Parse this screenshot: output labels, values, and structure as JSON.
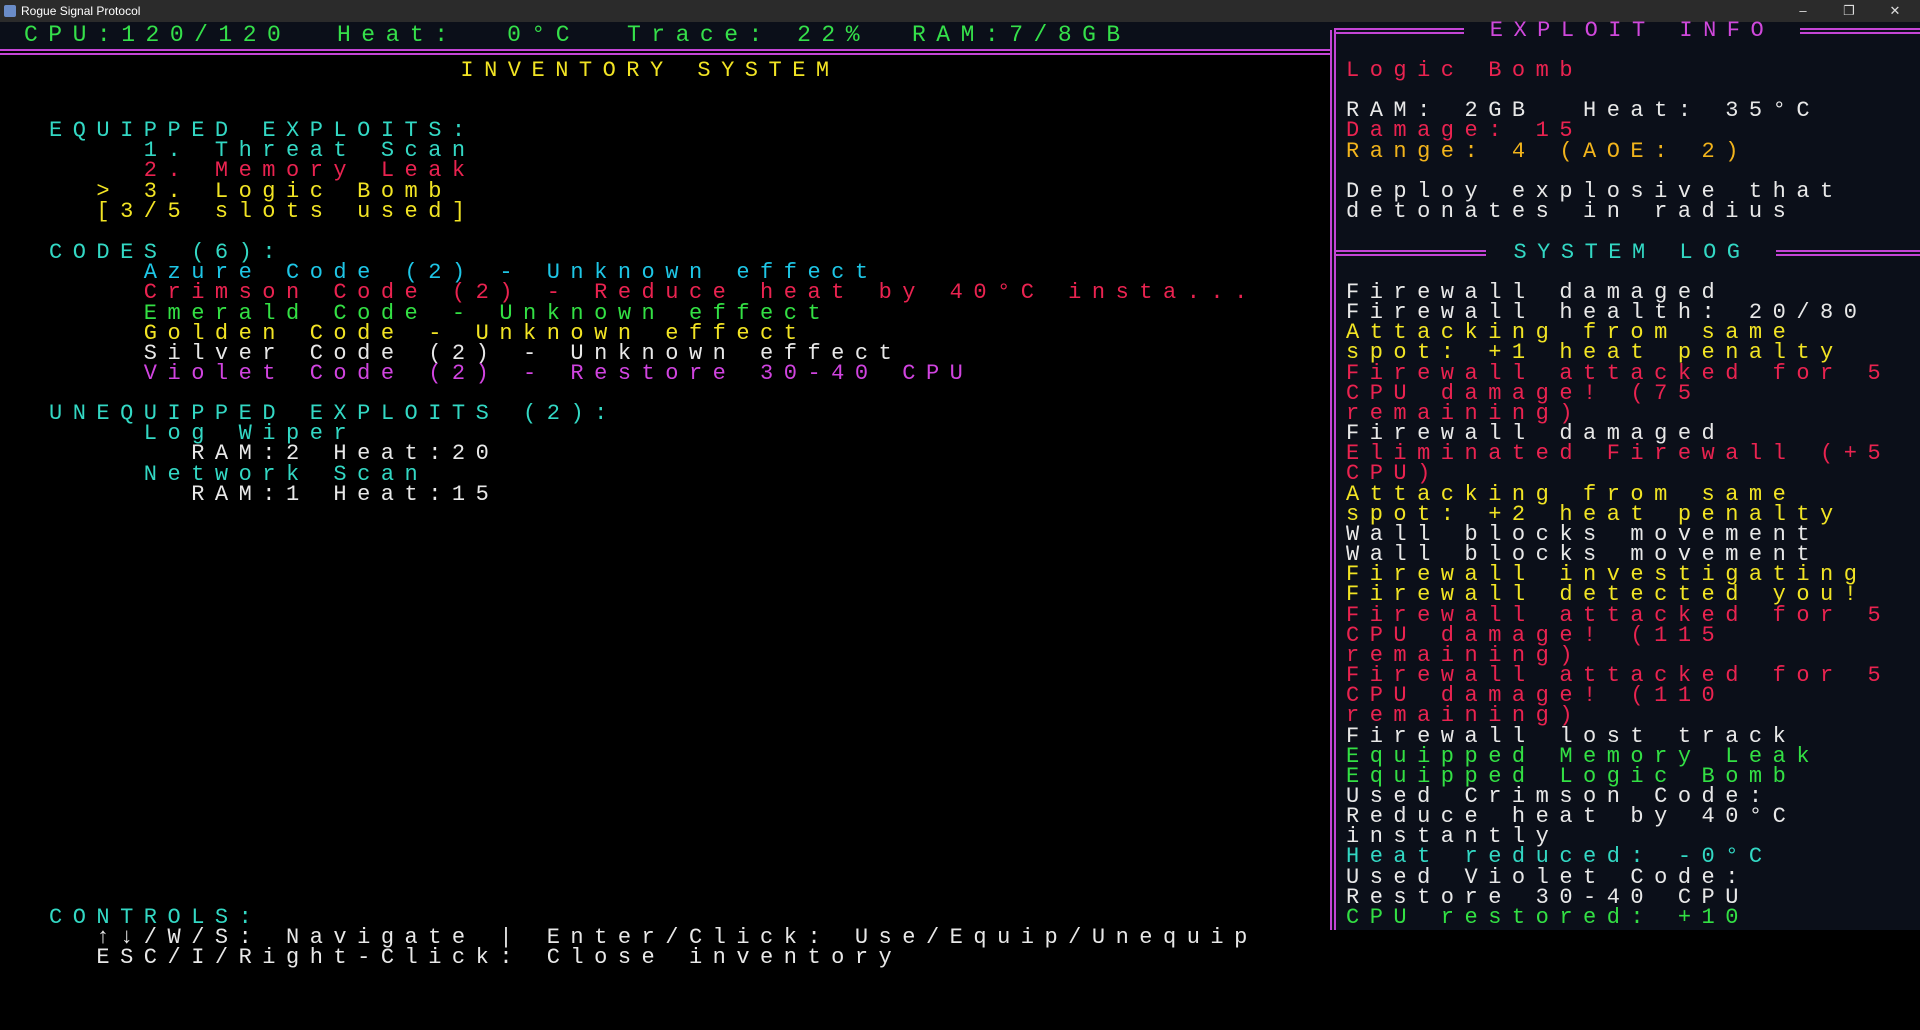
{
  "window": {
    "title": "Rogue Signal Protocol",
    "minimize": "–",
    "restore": "❐",
    "close": "✕"
  },
  "status": {
    "cpu": "CPU:120/120",
    "heat": "Heat:  0°C",
    "trace": "Trace: 22%",
    "ram": "RAM:7/8GB"
  },
  "inventory": {
    "title": "INVENTORY SYSTEM",
    "equipped_header": "EQUIPPED EXPLOITS:",
    "equipped": [
      {
        "text": "1. Threat Scan",
        "color": "cyan"
      },
      {
        "text": "2. Memory Leak",
        "color": "red"
      },
      {
        "text": "> 3. Logic Bomb",
        "color": "yellow",
        "selected": true
      }
    ],
    "slots": "[3/5 slots used]",
    "codes_header": "CODES (6):",
    "codes": [
      {
        "text": "Azure Code (2) - Unknown effect",
        "color": "azure"
      },
      {
        "text": "Crimson Code (2) - Reduce heat by 40°C insta...",
        "color": "red"
      },
      {
        "text": "Emerald Code - Unknown effect",
        "color": "green"
      },
      {
        "text": "Golden Code - Unknown effect",
        "color": "yellow"
      },
      {
        "text": "Silver Code (2) - Unknown effect",
        "color": "white"
      },
      {
        "text": "Violet Code (2) - Restore 30-40 CPU",
        "color": "violet"
      }
    ],
    "unequipped_header": "UNEQUIPPED EXPLOITS (2):",
    "unequipped": [
      {
        "name": "Log Wiper",
        "stats": "RAM:2 Heat:20"
      },
      {
        "name": "Network Scan",
        "stats": "RAM:1 Heat:15"
      }
    ],
    "controls_header": "CONTROLS:",
    "controls": [
      "↑↓/W/S: Navigate | Enter/Click: Use/Equip/Unequip",
      "ESC/I/Right-Click: Close inventory"
    ]
  },
  "exploit_info": {
    "title": "EXPLOIT INFO",
    "name": "Logic Bomb",
    "ram_heat": "RAM: 2GB  Heat: 35°C",
    "damage": "Damage: 15",
    "range": "Range: 4 (AOE: 2)",
    "description": [
      "Deploy explosive that",
      "detonates in radius"
    ]
  },
  "system_log": {
    "title": "SYSTEM LOG",
    "lines": [
      {
        "text": "Firewall damaged",
        "color": "white"
      },
      {
        "text": "Firewall health: 20/80",
        "color": "white"
      },
      {
        "text": "Attacking from same",
        "color": "yellow"
      },
      {
        "text": "spot: +1 heat penalty",
        "color": "yellow"
      },
      {
        "text": "Firewall attacked for 5",
        "color": "red"
      },
      {
        "text": "CPU damage! (75",
        "color": "red"
      },
      {
        "text": "remaining)",
        "color": "red"
      },
      {
        "text": "Firewall damaged",
        "color": "white"
      },
      {
        "text": "Eliminated Firewall (+5",
        "color": "red"
      },
      {
        "text": "CPU)",
        "color": "red"
      },
      {
        "text": "Attacking from same",
        "color": "yellow"
      },
      {
        "text": "spot: +2 heat penalty",
        "color": "yellow"
      },
      {
        "text": "Wall blocks movement",
        "color": "white"
      },
      {
        "text": "Wall blocks movement",
        "color": "white"
      },
      {
        "text": "Firewall investigating",
        "color": "yellow"
      },
      {
        "text": "Firewall detected you!",
        "color": "yellow"
      },
      {
        "text": "Firewall attacked for 5",
        "color": "red"
      },
      {
        "text": "CPU damage! (115",
        "color": "red"
      },
      {
        "text": "remaining)",
        "color": "red"
      },
      {
        "text": "Firewall attacked for 5",
        "color": "red"
      },
      {
        "text": "CPU damage! (110",
        "color": "red"
      },
      {
        "text": "remaining)",
        "color": "red"
      },
      {
        "text": "Firewall lost track",
        "color": "white"
      },
      {
        "text": "Equipped Memory Leak",
        "color": "green"
      },
      {
        "text": "Equipped Logic Bomb",
        "color": "green"
      },
      {
        "text": "Used Crimson Code:",
        "color": "white"
      },
      {
        "text": "Reduce heat by 40°C",
        "color": "white"
      },
      {
        "text": "instantly",
        "color": "white"
      },
      {
        "text": "Heat reduced: -0°C",
        "color": "cyan"
      },
      {
        "text": "Used Violet Code:",
        "color": "white"
      },
      {
        "text": "Restore 30-40 CPU",
        "color": "white"
      },
      {
        "text": "CPU restored: +10",
        "color": "green"
      }
    ]
  },
  "colors": {
    "border": "#c445d6",
    "panel_bg": "#0b0f19",
    "cyan": "#33d8c4",
    "red": "#ea2350",
    "green": "#33e044",
    "yellow": "#f2e424",
    "violet": "#d144e0",
    "orange": "#f2b41c"
  }
}
